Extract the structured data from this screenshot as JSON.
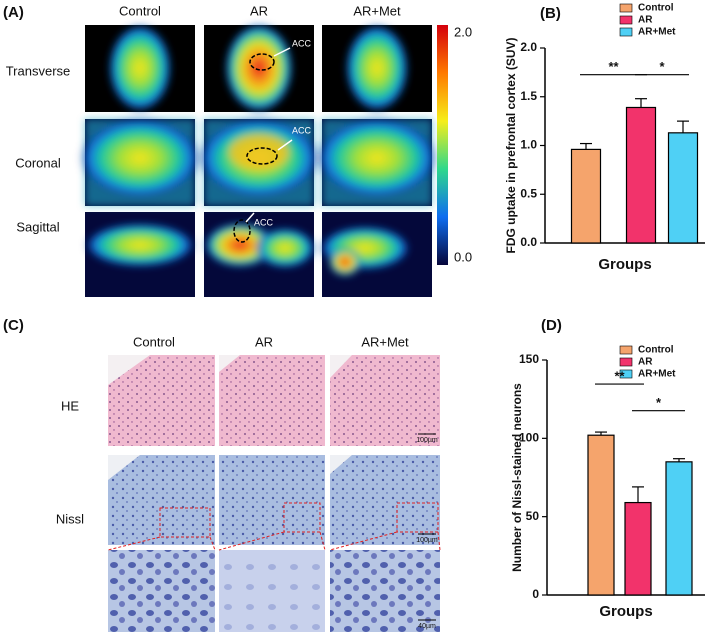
{
  "panel_a": {
    "label": "(A)",
    "columns": [
      "Control",
      "AR",
      "AR+Met"
    ],
    "rows": [
      "Transverse",
      "Coronal",
      "Sagittal"
    ],
    "annotation": "ACC",
    "colorbar_labels": [
      "2.0",
      "0.0"
    ]
  },
  "panel_c": {
    "label": "(C)",
    "columns": [
      "Control",
      "AR",
      "AR+Met"
    ],
    "rows": [
      "HE",
      "Nissl"
    ],
    "scale_bars": [
      "100µm",
      "100µm",
      "40µm"
    ]
  },
  "chart_data": [
    {
      "type": "bar",
      "panel_label": "(B)",
      "ylabel": "FDG uptake in prefrontal cortex (SUV)",
      "xlabel": "Groups",
      "categories": [
        "Control",
        "AR",
        "AR+Met"
      ],
      "values": [
        0.96,
        1.39,
        1.13
      ],
      "errors": [
        0.06,
        0.09,
        0.12
      ],
      "colors": [
        "#f5a46c",
        "#f2336b",
        "#4fd0f5"
      ],
      "legend": "upper right",
      "significance": [
        "**",
        "*"
      ],
      "ylim": [
        0,
        2
      ],
      "yticks": [
        {
          "value": 0,
          "label": "0.0"
        },
        0.5,
        {
          "value": 1,
          "label": "1.0"
        },
        1.5,
        {
          "value": 2,
          "label": "2.0"
        }
      ]
    },
    {
      "type": "bar",
      "panel_label": "(D)",
      "ylabel": "Number of Nissl-stained neurons",
      "xlabel": "Groups",
      "categories": [
        "Control",
        "AR",
        "AR+Met"
      ],
      "values": [
        102,
        59,
        85
      ],
      "errors": [
        2,
        10,
        2
      ],
      "colors": [
        "#f5a46c",
        "#f2336b",
        "#4fd0f5"
      ],
      "legend": "upper right",
      "significance": [
        "**",
        "*"
      ],
      "ylim": [
        0,
        150
      ],
      "yticks": [
        0,
        50,
        100,
        150
      ]
    }
  ]
}
